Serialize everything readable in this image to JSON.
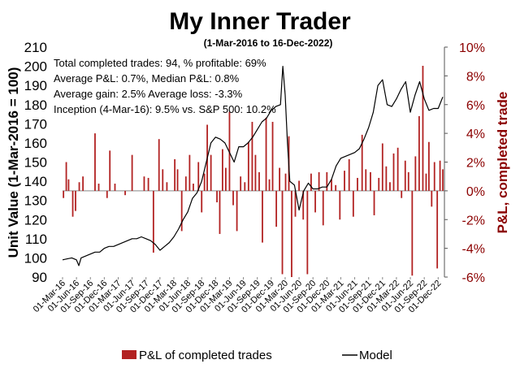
{
  "chart_data": {
    "type": "bar-line combo",
    "title": "My Inner Trader",
    "subtitle": "(1-Mar-2016 to 16-Dec-2022)",
    "ylabel_left": "Unit Value (1-Mar-2016 = 100)",
    "ylabel_right": "P&L, completed trade",
    "ylim_left": [
      90,
      210
    ],
    "yticks_left": [
      "90",
      "100",
      "110",
      "120",
      "130",
      "140",
      "150",
      "160",
      "170",
      "180",
      "190",
      "200",
      "210"
    ],
    "ylim_right": [
      -6,
      10
    ],
    "yticks_right": [
      "-6%",
      "-4%",
      "-2%",
      "0%",
      "2%",
      "4%",
      "6%",
      "8%",
      "10%"
    ],
    "x_tick_labels": [
      "01-Mar-16",
      "01-Jun-16",
      "01-Sep-16",
      "01-Dec-16",
      "01-Mar-17",
      "01-Jun-17",
      "01-Sep-17",
      "01-Dec-17",
      "01-Mar-18",
      "01-Jun-18",
      "01-Sep-18",
      "01-Dec-18",
      "01-Mar-19",
      "01-Jun-19",
      "01-Sep-19",
      "01-Dec-19",
      "01-Mar-20",
      "01-Jun-20",
      "01-Sep-20",
      "01-Dec-20",
      "01-Mar-21",
      "01-Jun-21",
      "01-Sep-21",
      "01-Dec-21",
      "01-Mar-22",
      "01-Jun-22",
      "01-Sep-22",
      "01-Dec-22"
    ],
    "annotations": [
      "Total completed trades: 94, % profitable: 69%",
      "Average P&L: 0.7%, Median P&L: 0.8%",
      "Average gain: 2.5% Average loss: -3.3%",
      "Inception (4-Mar-16): 9.5% vs. S&P 500: 10.2%"
    ],
    "legend": [
      "P&L of completed trades",
      "Model"
    ],
    "colors": {
      "bars": "#b22222",
      "line": "#000000",
      "right_axis": "#8b0000"
    },
    "series": [
      {
        "name": "Model",
        "type": "line",
        "x_months_since_start": [
          0,
          1,
          2,
          3,
          3.5,
          4,
          5,
          6,
          7,
          8,
          9,
          10,
          11,
          12,
          13,
          14,
          15,
          16,
          17,
          18,
          19,
          20,
          21,
          22,
          23,
          24,
          25,
          26,
          27,
          28,
          29,
          30,
          31,
          32,
          33,
          34,
          35,
          36,
          37,
          38,
          39,
          40,
          41,
          42,
          43,
          44,
          45,
          46,
          47,
          47.5,
          48,
          48.5,
          49,
          50,
          51,
          52,
          53,
          54,
          55,
          56,
          57,
          58,
          59,
          60,
          61,
          62,
          63,
          64,
          65,
          66,
          67,
          68,
          69,
          70,
          71,
          72,
          73,
          74,
          75,
          76,
          77,
          78,
          79,
          80,
          81,
          82
        ],
        "values": [
          99,
          99.5,
          100,
          99,
          96,
          100,
          101,
          102,
          103,
          103,
          105,
          106,
          106,
          107,
          108,
          109,
          110,
          110,
          111,
          110,
          109,
          107,
          104,
          106,
          108,
          111,
          115,
          120,
          124,
          131,
          134,
          140,
          150,
          160,
          163,
          162,
          160,
          155,
          150,
          158,
          158,
          160,
          163,
          167,
          171,
          173,
          177,
          179,
          180,
          200,
          185,
          160,
          140,
          138,
          125,
          135,
          139,
          136,
          136,
          137,
          137,
          141,
          148,
          152,
          153,
          154,
          155,
          157,
          162,
          168,
          176,
          190,
          193,
          180,
          179,
          183,
          188,
          192,
          176,
          185,
          192,
          183,
          177,
          178,
          178,
          184
        ]
      },
      {
        "name": "P&L of completed trades",
        "type": "bar",
        "x_months_since_start": [
          0.2,
          0.8,
          1.3,
          2.2,
          2.8,
          3.6,
          4.4,
          7.0,
          7.8,
          9.6,
          10.2,
          11.3,
          13.5,
          15.0,
          17.6,
          18.5,
          19.6,
          20.8,
          21.6,
          22.5,
          24.2,
          24.8,
          25.7,
          26.6,
          27.4,
          28.2,
          29.3,
          30.0,
          30.6,
          31.2,
          32.0,
          33.3,
          33.9,
          34.5,
          35.2,
          36.0,
          36.8,
          37.6,
          38.4,
          39.3,
          40.1,
          40.9,
          41.6,
          42.4,
          43.1,
          43.9,
          44.6,
          45.3,
          46.1,
          46.8,
          47.4,
          48.1,
          48.8,
          49.4,
          50.2,
          51.0,
          51.9,
          52.8,
          53.6,
          54.5,
          55.3,
          56.2,
          57.0,
          58.0,
          58.9,
          59.8,
          60.8,
          61.8,
          62.7,
          63.6,
          64.6,
          65.4,
          66.4,
          67.2,
          68.2,
          69.0,
          69.8,
          70.6,
          71.4,
          72.3,
          73.1,
          73.9,
          74.6,
          75.4,
          76.1,
          76.9,
          77.7,
          78.4,
          79.0,
          79.6,
          80.2,
          80.8,
          81.4,
          82.0
        ],
        "values_pct": [
          -0.5,
          2.0,
          0.8,
          -1.8,
          -1.4,
          0.6,
          1.0,
          4.0,
          0.5,
          -0.5,
          2.8,
          0.5,
          -0.3,
          2.5,
          1.0,
          0.9,
          -4.3,
          3.6,
          1.5,
          0.6,
          2.2,
          1.5,
          -2.8,
          1.0,
          2.5,
          0.5,
          2.0,
          -1.5,
          1.2,
          4.6,
          2.5,
          -0.8,
          -3.0,
          2.9,
          1.6,
          5.5,
          -1.0,
          -2.8,
          1.0,
          0.6,
          3.4,
          4.8,
          2.5,
          1.3,
          -3.6,
          5.1,
          0.8,
          4.8,
          -2.5,
          1.6,
          -5.8,
          1.2,
          3.8,
          -6.0,
          -1.8,
          0.7,
          -2.0,
          -5.8,
          1.2,
          -1.5,
          1.3,
          -2.4,
          1.3,
          0.8,
          0.4,
          -2.0,
          1.4,
          2.2,
          -1.8,
          0.9,
          3.9,
          1.5,
          1.3,
          -1.7,
          0.9,
          3.3,
          1.7,
          0.6,
          2.6,
          3.0,
          -0.5,
          2.1,
          1.3,
          -5.9,
          2.4,
          5.2,
          8.7,
          1.2,
          3.4,
          -1.1,
          2.0,
          -5.4,
          2.1,
          1.5
        ]
      }
    ]
  }
}
